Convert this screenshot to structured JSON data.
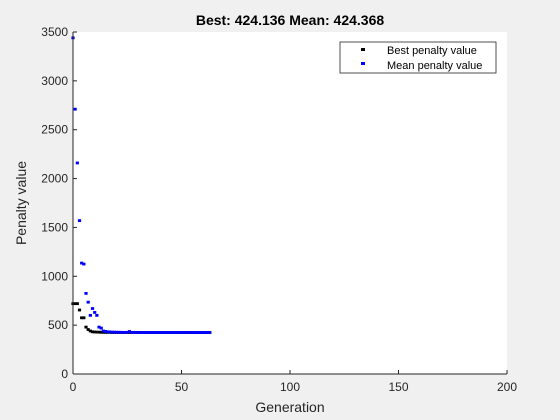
{
  "chart_data": {
    "type": "scatter",
    "title": "Best: 424.136 Mean: 424.368",
    "xlabel": "Generation",
    "ylabel": "Penalty value",
    "xlim": [
      0,
      200
    ],
    "ylim": [
      0,
      3500
    ],
    "xticks": [
      "0",
      "50",
      "100",
      "150",
      "200"
    ],
    "yticks": [
      "0",
      "500",
      "1000",
      "1500",
      "2000",
      "2500",
      "3000",
      "3500"
    ],
    "grid": false,
    "legend_position": "top-right",
    "series": [
      {
        "name": "Best penalty value",
        "color": "#000000",
        "x": [
          0,
          1,
          2,
          3,
          4,
          5,
          6,
          7,
          8,
          9,
          10,
          11,
          12,
          13,
          14,
          15,
          16,
          17,
          18,
          19,
          20,
          21,
          22,
          23,
          24,
          25,
          26,
          27,
          28,
          29,
          30,
          31,
          32,
          33,
          34,
          35,
          36,
          37,
          38,
          39,
          40,
          41,
          42,
          43,
          44,
          45,
          46,
          47,
          48,
          49,
          50,
          51,
          52,
          53,
          54,
          55,
          56,
          57,
          58,
          59,
          60,
          61,
          62,
          63
        ],
        "y": [
          720,
          720,
          720,
          655,
          575,
          575,
          480,
          455,
          440,
          432,
          430,
          429,
          428,
          427,
          427,
          426,
          426,
          426,
          425,
          425,
          425,
          425,
          425,
          425,
          425,
          425,
          425,
          425,
          425,
          425,
          425,
          425,
          425,
          425,
          425,
          425,
          425,
          425,
          425,
          425,
          425,
          425,
          425,
          425,
          425,
          425,
          425,
          424.5,
          424.5,
          424.5,
          424.5,
          424.5,
          424.5,
          424.5,
          424.5,
          424.5,
          424.5,
          424.5,
          424.136,
          424.136,
          424.136,
          424.136,
          424.136,
          424.136
        ]
      },
      {
        "name": "Mean penalty value",
        "color": "#0000ff",
        "x": [
          0,
          1,
          2,
          3,
          4,
          5,
          6,
          7,
          8,
          9,
          10,
          11,
          12,
          13,
          14,
          15,
          16,
          17,
          18,
          19,
          20,
          21,
          22,
          23,
          24,
          25,
          26,
          27,
          28,
          29,
          30,
          31,
          32,
          33,
          34,
          35,
          36,
          37,
          38,
          39,
          40,
          41,
          42,
          43,
          44,
          45,
          46,
          47,
          48,
          49,
          50,
          51,
          52,
          53,
          54,
          55,
          56,
          57,
          58,
          59,
          60,
          61,
          62,
          63
        ],
        "y": [
          3440,
          2710,
          2160,
          1570,
          1135,
          1125,
          825,
          735,
          600,
          670,
          630,
          600,
          480,
          470,
          440,
          436,
          432,
          430,
          429,
          428,
          428,
          427,
          427,
          426,
          426,
          426,
          435,
          426,
          426,
          426,
          425,
          425,
          425,
          425,
          425,
          425,
          425,
          425,
          425,
          425,
          425,
          425,
          425,
          425,
          425,
          425,
          425,
          425,
          425,
          425,
          425,
          425,
          425,
          425,
          425,
          425,
          425,
          425,
          425,
          425,
          424.5,
          424.5,
          424.368,
          424.368
        ]
      }
    ]
  }
}
